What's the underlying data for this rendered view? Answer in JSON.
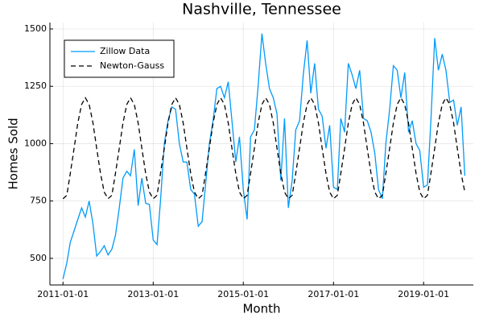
{
  "chart_data": {
    "type": "line",
    "title": "Nashville, Tennessee",
    "x_label": "Month",
    "y_label": "Homes Sold",
    "x": [
      "2011-01-01",
      "2011-02-01",
      "2011-03-01",
      "2011-04-01",
      "2011-05-01",
      "2011-06-01",
      "2011-07-01",
      "2011-08-01",
      "2011-09-01",
      "2011-10-01",
      "2011-11-01",
      "2011-12-01",
      "2012-01-01",
      "2012-02-01",
      "2012-03-01",
      "2012-04-01",
      "2012-05-01",
      "2012-06-01",
      "2012-07-01",
      "2012-08-01",
      "2012-09-01",
      "2012-10-01",
      "2012-11-01",
      "2012-12-01",
      "2013-01-01",
      "2013-02-01",
      "2013-03-01",
      "2013-04-01",
      "2013-05-01",
      "2013-06-01",
      "2013-07-01",
      "2013-08-01",
      "2013-09-01",
      "2013-10-01",
      "2013-11-01",
      "2013-12-01",
      "2014-01-01",
      "2014-02-01",
      "2014-03-01",
      "2014-04-01",
      "2014-05-01",
      "2014-06-01",
      "2014-07-01",
      "2014-08-01",
      "2014-09-01",
      "2014-10-01",
      "2014-11-01",
      "2014-12-01",
      "2015-01-01",
      "2015-02-01",
      "2015-03-01",
      "2015-04-01",
      "2015-05-01",
      "2015-06-01",
      "2015-07-01",
      "2015-08-01",
      "2015-09-01",
      "2015-10-01",
      "2015-11-01",
      "2015-12-01",
      "2016-01-01",
      "2016-02-01",
      "2016-03-01",
      "2016-04-01",
      "2016-05-01",
      "2016-06-01",
      "2016-07-01",
      "2016-08-01",
      "2016-09-01",
      "2016-10-01",
      "2016-11-01",
      "2016-12-01",
      "2017-01-01",
      "2017-02-01",
      "2017-03-01",
      "2017-04-01",
      "2017-05-01",
      "2017-06-01",
      "2017-07-01",
      "2017-08-01",
      "2017-09-01",
      "2017-10-01",
      "2017-11-01",
      "2017-12-01",
      "2018-01-01",
      "2018-02-01",
      "2018-03-01",
      "2018-04-01",
      "2018-05-01",
      "2018-06-01",
      "2018-07-01",
      "2018-08-01",
      "2018-09-01",
      "2018-10-01",
      "2018-11-01",
      "2018-12-01",
      "2019-01-01",
      "2019-02-01",
      "2019-03-01",
      "2019-04-01",
      "2019-05-01",
      "2019-06-01",
      "2019-07-01",
      "2019-08-01",
      "2019-09-01",
      "2019-10-01",
      "2019-11-01",
      "2019-12-01"
    ],
    "series": [
      {
        "name": "Zillow Data",
        "color": "#009af9",
        "linestyle": "solid",
        "values": [
          410,
          480,
          570,
          620,
          670,
          720,
          680,
          750,
          650,
          510,
          530,
          555,
          515,
          540,
          600,
          720,
          850,
          880,
          860,
          975,
          730,
          850,
          740,
          735,
          580,
          560,
          750,
          1000,
          1100,
          1160,
          1150,
          1000,
          920,
          920,
          800,
          780,
          640,
          660,
          820,
          1000,
          1100,
          1240,
          1250,
          1200,
          1270,
          1100,
          920,
          1030,
          800,
          670,
          1030,
          1060,
          1250,
          1480,
          1350,
          1240,
          1200,
          1130,
          840,
          1110,
          720,
          840,
          1060,
          1100,
          1300,
          1450,
          1220,
          1350,
          1150,
          1120,
          980,
          1080,
          810,
          800,
          1110,
          1050,
          1350,
          1300,
          1240,
          1320,
          1110,
          1100,
          1050,
          960,
          800,
          760,
          1000,
          1150,
          1340,
          1320,
          1200,
          1310,
          1050,
          1100,
          1000,
          970,
          810,
          820,
          1100,
          1460,
          1320,
          1390,
          1320,
          1180,
          1190,
          1080,
          1160,
          860
        ]
      },
      {
        "name": "Newton-Gauss",
        "color": "#000000",
        "linestyle": "dash",
        "values": [
          760,
          775,
          870,
          980,
          1090,
          1171,
          1200,
          1171,
          1090,
          980,
          870,
          789,
          760,
          775,
          870,
          980,
          1090,
          1171,
          1200,
          1171,
          1090,
          980,
          870,
          789,
          760,
          775,
          870,
          980,
          1090,
          1171,
          1200,
          1171,
          1090,
          980,
          870,
          789,
          760,
          775,
          870,
          980,
          1090,
          1171,
          1200,
          1171,
          1090,
          980,
          870,
          789,
          760,
          775,
          870,
          980,
          1090,
          1171,
          1200,
          1171,
          1090,
          980,
          870,
          789,
          760,
          775,
          870,
          980,
          1090,
          1171,
          1200,
          1171,
          1090,
          980,
          870,
          789,
          760,
          775,
          870,
          980,
          1090,
          1171,
          1200,
          1171,
          1090,
          980,
          870,
          789,
          760,
          775,
          870,
          980,
          1090,
          1171,
          1200,
          1171,
          1090,
          980,
          870,
          789,
          760,
          775,
          870,
          980,
          1090,
          1171,
          1200,
          1171,
          1090,
          980,
          870,
          789
        ]
      }
    ],
    "xlim": [
      "2010-09-17",
      "2020-02-08"
    ],
    "xticks": [
      "2011-01-01",
      "2013-01-01",
      "2015-01-01",
      "2017-01-01",
      "2019-01-01"
    ],
    "ylim": [
      384,
      1528
    ],
    "yticks": [
      500,
      750,
      1000,
      1250,
      1500
    ],
    "grid": true,
    "legend": "top-left"
  }
}
